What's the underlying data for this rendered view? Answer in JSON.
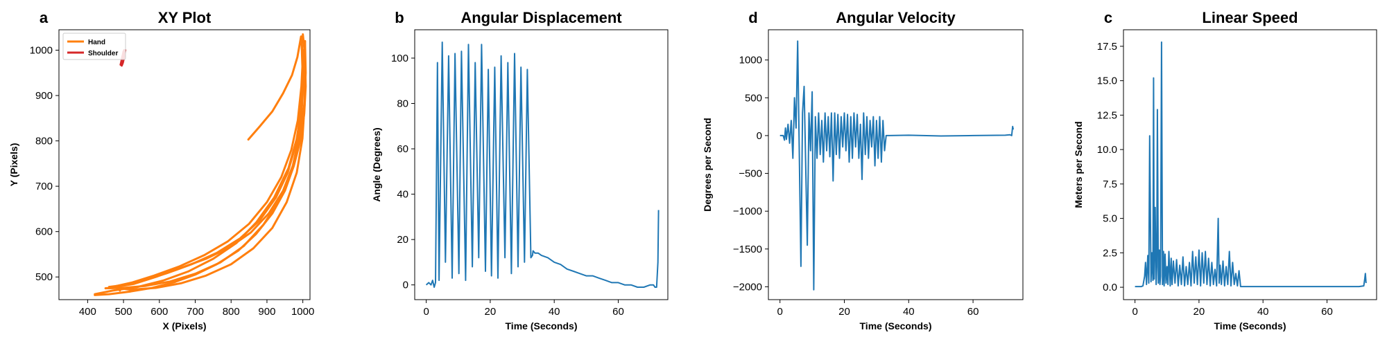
{
  "chart_data": [
    {
      "panel": "a",
      "type": "line",
      "title": "XY Plot",
      "xlabel": "X (Pixels)",
      "ylabel": "Y (Pixels)",
      "xlim": [
        320,
        1020
      ],
      "ylim": [
        450,
        1045
      ],
      "xticks": [
        400,
        500,
        600,
        700,
        800,
        900,
        1000
      ],
      "yticks": [
        500,
        600,
        700,
        800,
        900,
        1000
      ],
      "legend": "top-left",
      "series": [
        {
          "name": "Hand",
          "color": "#ff7f0e",
          "paths": [
            [
              [
                848,
                803
              ],
              [
                880,
                832
              ],
              [
                915,
                865
              ],
              [
                945,
                905
              ],
              [
                970,
                945
              ],
              [
                985,
                985
              ],
              [
                995,
                1030
              ]
            ],
            [
              [
                1000,
                1035
              ],
              [
                1006,
                990
              ],
              [
                1008,
                920
              ],
              [
                1004,
                860
              ],
              [
                993,
                800
              ],
              [
                975,
                745
              ],
              [
                950,
                690
              ],
              [
                915,
                640
              ],
              [
                870,
                595
              ],
              [
                820,
                558
              ],
              [
                760,
                528
              ],
              [
                700,
                505
              ],
              [
                640,
                488
              ],
              [
                580,
                476
              ],
              [
                520,
                468
              ],
              [
                460,
                462
              ],
              [
                420,
                460
              ]
            ],
            [
              [
                420,
                462
              ],
              [
                470,
                470
              ],
              [
                540,
                478
              ],
              [
                610,
                492
              ],
              [
                680,
                512
              ],
              [
                750,
                540
              ],
              [
                815,
                575
              ],
              [
                870,
                620
              ],
              [
                920,
                675
              ],
              [
                960,
                740
              ],
              [
                985,
                810
              ],
              [
                998,
                890
              ],
              [
                1002,
                960
              ],
              [
                996,
                1030
              ]
            ],
            [
              [
                996,
                1030
              ],
              [
                999,
                960
              ],
              [
                998,
                880
              ],
              [
                990,
                810
              ],
              [
                972,
                745
              ],
              [
                945,
                690
              ],
              [
                905,
                640
              ],
              [
                855,
                598
              ],
              [
                795,
                565
              ],
              [
                730,
                540
              ],
              [
                660,
                520
              ],
              [
                590,
                500
              ],
              [
                530,
                485
              ],
              [
                480,
                478
              ],
              [
                450,
                475
              ]
            ],
            [
              [
                450,
                475
              ],
              [
                500,
                476
              ],
              [
                560,
                480
              ],
              [
                630,
                490
              ],
              [
                700,
                507
              ],
              [
                770,
                532
              ],
              [
                835,
                568
              ],
              [
                890,
                615
              ],
              [
                935,
                670
              ],
              [
                970,
                735
              ],
              [
                992,
                805
              ],
              [
                1004,
                880
              ],
              [
                1008,
                950
              ],
              [
                1006,
                1020
              ]
            ],
            [
              [
                1006,
                1020
              ],
              [
                1002,
                940
              ],
              [
                994,
                860
              ],
              [
                980,
                790
              ],
              [
                958,
                730
              ],
              [
                925,
                675
              ],
              [
                880,
                625
              ],
              [
                825,
                585
              ],
              [
                760,
                553
              ],
              [
                690,
                528
              ],
              [
                620,
                508
              ],
              [
                555,
                492
              ],
              [
                500,
                482
              ],
              [
                460,
                478
              ]
            ],
            [
              [
                460,
                478
              ],
              [
                520,
                472
              ],
              [
                590,
                476
              ],
              [
                660,
                486
              ],
              [
                730,
                503
              ],
              [
                800,
                528
              ],
              [
                862,
                563
              ],
              [
                915,
                608
              ],
              [
                955,
                665
              ],
              [
                983,
                730
              ],
              [
                999,
                805
              ],
              [
                1005,
                880
              ],
              [
                1004,
                960
              ],
              [
                1001,
                1000
              ]
            ],
            [
              [
                1001,
                1000
              ],
              [
                996,
                920
              ],
              [
                986,
                845
              ],
              [
                968,
                780
              ],
              [
                940,
                720
              ],
              [
                900,
                665
              ],
              [
                850,
                617
              ],
              [
                790,
                578
              ],
              [
                725,
                548
              ],
              [
                655,
                523
              ],
              [
                585,
                503
              ],
              [
                525,
                488
              ],
              [
                480,
                480
              ],
              [
                490,
                470
              ]
            ]
          ]
        },
        {
          "name": "Shoulder",
          "color": "#d62728",
          "paths": [
            [
              [
                492,
                968
              ],
              [
                494,
                975
              ],
              [
                496,
                983
              ],
              [
                498,
                990
              ],
              [
                500,
                997
              ],
              [
                502,
                1000
              ],
              [
                504,
                995
              ],
              [
                502,
                988
              ],
              [
                499,
                980
              ],
              [
                497,
                973
              ],
              [
                495,
                966
              ],
              [
                498,
                972
              ],
              [
                501,
                982
              ],
              [
                503,
                992
              ],
              [
                505,
                1000
              ]
            ]
          ]
        }
      ]
    },
    {
      "panel": "b",
      "type": "line",
      "title": "Angular Displacement",
      "xlabel": "Time (Seconds)",
      "ylabel": "Angle (Degrees)",
      "xlim": [
        -3.6,
        75.5
      ],
      "ylim": [
        -6.5,
        112.5
      ],
      "xticks": [
        0,
        20,
        40,
        60
      ],
      "yticks": [
        0,
        20,
        40,
        60,
        80,
        100
      ],
      "series": [
        {
          "name": "",
          "color": "#1f77b4",
          "x": [
            0,
            0.8,
            1.5,
            2.0,
            2.5,
            2.9,
            3.5,
            4.0,
            5.0,
            6.0,
            7.0,
            8.1,
            9.0,
            10.2,
            11.0,
            12.3,
            13.2,
            14.4,
            15.3,
            16.4,
            17.3,
            18.5,
            19.4,
            20.4,
            21.4,
            22.4,
            23.4,
            24.6,
            25.5,
            26.6,
            27.6,
            28.7,
            29.6,
            30.7,
            31.6,
            32.7,
            33.2,
            33.4,
            34,
            35,
            36,
            38,
            40,
            42,
            44,
            46,
            48,
            50,
            52,
            54,
            56,
            58,
            60,
            62,
            64,
            66,
            68,
            70,
            71,
            71.5,
            72,
            72.4,
            72.6
          ],
          "y": [
            0,
            1,
            0,
            2,
            -1,
            1,
            98,
            2,
            107,
            10,
            101,
            3,
            102,
            5,
            103,
            2,
            106,
            8,
            98,
            12,
            106,
            6,
            95,
            4,
            96,
            3,
            101,
            12,
            98,
            5,
            102,
            8,
            96,
            10,
            95,
            12,
            13,
            15,
            14,
            14,
            13,
            12,
            10,
            9,
            7,
            6,
            5,
            4,
            4,
            3,
            2,
            1,
            1,
            0,
            0,
            -1,
            -1,
            0,
            0,
            -1,
            -1,
            10,
            33
          ]
        }
      ]
    },
    {
      "panel": "d",
      "type": "line",
      "title": "Angular Velocity",
      "xlabel": "Time (Seconds)",
      "ylabel": "Degrees per Second",
      "xlim": [
        -3.6,
        75.5
      ],
      "ylim": [
        -2170,
        1400
      ],
      "xticks": [
        0,
        20,
        40,
        60
      ],
      "yticks": [
        -2000,
        -1500,
        -1000,
        -500,
        0,
        500,
        1000
      ],
      "series": [
        {
          "name": "",
          "color": "#1f77b4",
          "x": [
            0,
            1.0,
            1.4,
            1.7,
            2.0,
            2.5,
            3.0,
            3.5,
            4.0,
            4.5,
            5.0,
            5.5,
            6.0,
            6.5,
            7.0,
            7.5,
            8.0,
            8.5,
            9.0,
            9.5,
            10.0,
            10.5,
            11.0,
            11.5,
            12.0,
            12.5,
            13.0,
            13.5,
            14.0,
            14.5,
            15.0,
            15.5,
            16.0,
            16.5,
            17.0,
            17.5,
            18.0,
            18.5,
            19.0,
            19.5,
            20.0,
            20.5,
            21.0,
            21.5,
            22.0,
            22.5,
            23.0,
            23.5,
            24.0,
            24.5,
            25.0,
            25.5,
            26.0,
            26.5,
            27.0,
            27.5,
            28.0,
            28.5,
            29.0,
            29.5,
            30.0,
            30.5,
            31.0,
            31.5,
            32.0,
            32.5,
            33.0,
            34,
            40,
            50,
            60,
            70,
            71.5,
            72,
            72.3,
            72.5
          ],
          "y": [
            0,
            0,
            -60,
            100,
            -50,
            150,
            -100,
            200,
            -300,
            500,
            100,
            1250,
            -200,
            -1730,
            300,
            650,
            -400,
            -1450,
            300,
            -200,
            580,
            -2040,
            250,
            -300,
            300,
            -250,
            200,
            -350,
            300,
            -200,
            250,
            -280,
            300,
            -600,
            300,
            -250,
            280,
            -300,
            250,
            -150,
            300,
            -200,
            280,
            -350,
            250,
            -300,
            300,
            -150,
            280,
            -300,
            150,
            -580,
            300,
            -250,
            250,
            -300,
            200,
            -150,
            250,
            -400,
            200,
            -300,
            250,
            -350,
            200,
            -200,
            0,
            0,
            5,
            -5,
            0,
            5,
            10,
            0,
            120,
            80
          ]
        }
      ]
    },
    {
      "panel": "c",
      "type": "line",
      "title": "Linear Speed",
      "xlabel": "Time (Seconds)",
      "ylabel": "Meters per Second",
      "xlim": [
        -3.6,
        75.5
      ],
      "ylim": [
        -0.9,
        18.7
      ],
      "xticks": [
        0,
        20,
        40,
        60
      ],
      "yticks": [
        0.0,
        2.5,
        5.0,
        7.5,
        10.0,
        12.5,
        15.0,
        17.5
      ],
      "series": [
        {
          "name": "",
          "color": "#1f77b4",
          "x": [
            0,
            2.0,
            2.5,
            3.0,
            3.3,
            3.6,
            4.0,
            4.3,
            4.6,
            5.0,
            5.3,
            5.6,
            5.8,
            6.0,
            6.3,
            6.6,
            6.8,
            7.0,
            7.3,
            7.6,
            7.8,
            8.0,
            8.3,
            8.6,
            8.9,
            9.1,
            9.4,
            9.7,
            10.0,
            10.3,
            10.6,
            11.0,
            11.3,
            11.6,
            12.0,
            12.5,
            13.0,
            13.5,
            14.0,
            14.5,
            15.0,
            15.5,
            16.0,
            16.5,
            17.0,
            17.5,
            18.0,
            18.5,
            19.0,
            19.5,
            20.0,
            20.5,
            21.0,
            21.5,
            22.0,
            22.5,
            23.0,
            23.5,
            24.0,
            24.5,
            25.0,
            25.5,
            26.0,
            26.3,
            26.6,
            27.0,
            27.5,
            28.0,
            28.5,
            29.0,
            29.5,
            30.0,
            30.5,
            31.0,
            31.5,
            32.0,
            32.5,
            33.0,
            34,
            40,
            50,
            60,
            70,
            71.5,
            71.8,
            72.0,
            72.2
          ],
          "y": [
            0.05,
            0.05,
            0.1,
            0.8,
            1.8,
            0.2,
            2.3,
            0.3,
            11.0,
            0.4,
            2.5,
            0.5,
            15.2,
            0.6,
            5.8,
            0.2,
            1.5,
            12.9,
            0.3,
            2.7,
            0.2,
            0.8,
            17.8,
            0.2,
            2.6,
            0.1,
            2.4,
            0.3,
            1.5,
            0.2,
            2.6,
            0.1,
            2.1,
            0.2,
            1.9,
            0.3,
            2.0,
            0.1,
            1.6,
            0.2,
            2.2,
            0.1,
            1.5,
            0.2,
            1.8,
            0.1,
            2.6,
            0.3,
            2.2,
            0.2,
            2.7,
            0.1,
            2.5,
            0.3,
            2.6,
            0.2,
            2.1,
            0.1,
            1.8,
            0.2,
            1.3,
            0.1,
            5.0,
            0.3,
            1.6,
            0.2,
            1.9,
            0.1,
            1.5,
            0.2,
            2.6,
            0.1,
            1.8,
            0.2,
            1.0,
            0.1,
            1.2,
            0.05,
            0.05,
            0.05,
            0.05,
            0.05,
            0.05,
            0.1,
            0.6,
            1.0,
            0.3
          ]
        }
      ]
    }
  ]
}
